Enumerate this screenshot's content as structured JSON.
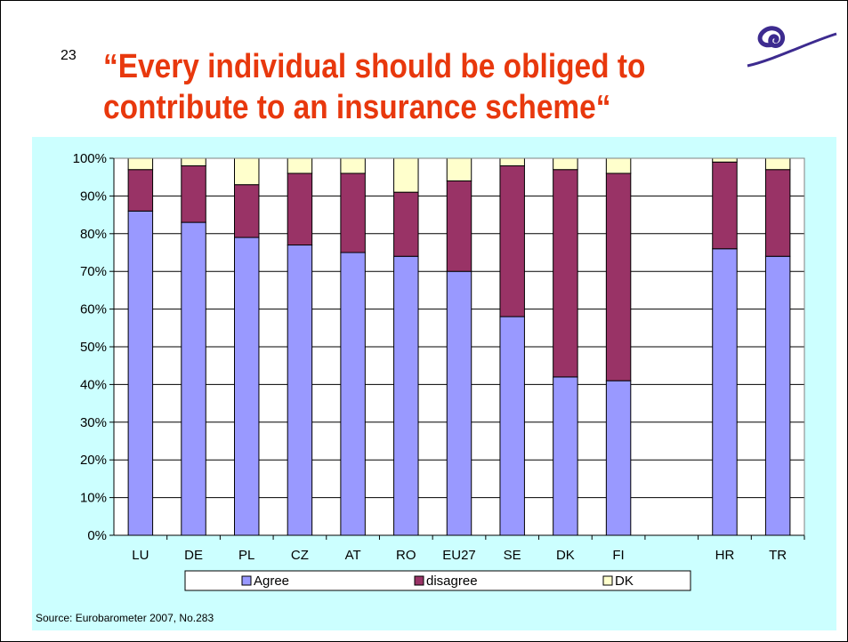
{
  "slide": {
    "number": "23",
    "title_line1": "“Every individual should be obliged to",
    "title_line2": "contribute to an insurance scheme“",
    "source": "Source: Eurobarometer 2007, No.283",
    "logo_icon": "swirl-logo-icon"
  },
  "colors": {
    "title": "#e8380d",
    "panel_bg": "#ccffff",
    "agree": "#9999ff",
    "disagree": "#993366",
    "dk": "#ffffcc"
  },
  "chart_data": {
    "type": "bar",
    "stacked": true,
    "categories": [
      "LU",
      "DE",
      "PL",
      "CZ",
      "AT",
      "RO",
      "EU27",
      "SE",
      "DK",
      "FI",
      "",
      "HR",
      "TR"
    ],
    "series": [
      {
        "name": "Agree",
        "values": [
          86,
          83,
          79,
          77,
          75,
          74,
          70,
          58,
          42,
          41,
          null,
          76,
          74
        ]
      },
      {
        "name": "disagree",
        "values": [
          11,
          15,
          14,
          19,
          21,
          17,
          24,
          40,
          55,
          55,
          null,
          23,
          23
        ]
      },
      {
        "name": "DK",
        "values": [
          3,
          2,
          7,
          4,
          4,
          9,
          6,
          2,
          3,
          4,
          null,
          1,
          3
        ]
      }
    ],
    "ylim": [
      0,
      100
    ],
    "yticks": [
      "0%",
      "10%",
      "20%",
      "30%",
      "40%",
      "50%",
      "60%",
      "70%",
      "80%",
      "90%",
      "100%"
    ],
    "grid": true,
    "legend": "bottom"
  }
}
